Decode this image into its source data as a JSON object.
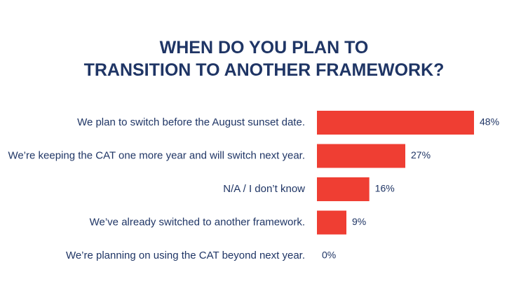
{
  "chart_data": {
    "type": "bar",
    "orientation": "horizontal",
    "title": [
      "WHEN DO YOU PLAN TO",
      "TRANSITION TO ANOTHER FRAMEWORK?"
    ],
    "categories": [
      "We plan to switch before the August sunset date.",
      "We’re keeping the CAT one more year and will switch next year.",
      "N/A / I don’t know",
      "We’ve already switched to another framework.",
      "We’re planning on using the CAT beyond next year."
    ],
    "values": [
      48,
      27,
      16,
      9,
      0
    ],
    "value_labels": [
      "48%",
      "27%",
      "16%",
      "9%",
      "0%"
    ],
    "unit": "%",
    "xlim": [
      0,
      48
    ],
    "grid": false,
    "legend": "none",
    "bar_color": "#ef3e33",
    "text_color": "#1f3565"
  }
}
